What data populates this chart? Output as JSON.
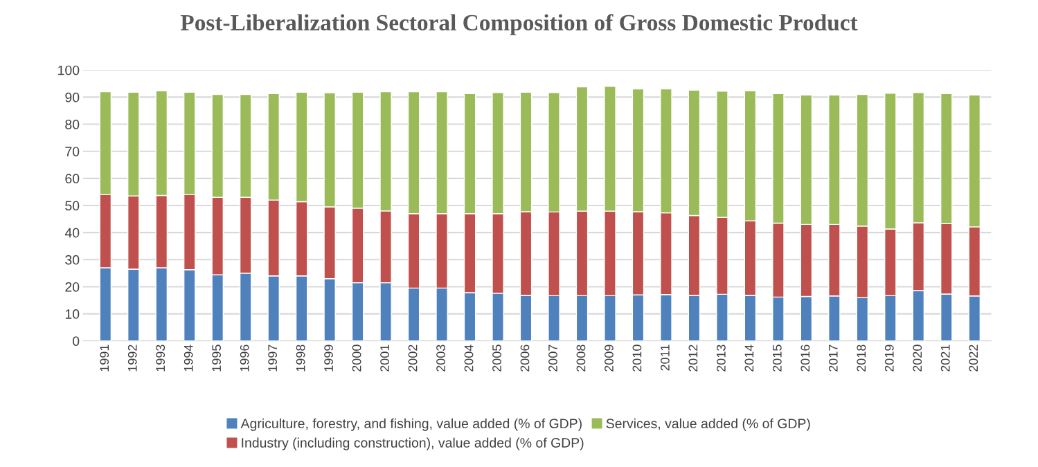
{
  "chart_data": {
    "type": "bar",
    "stacked": true,
    "title": "Post-Liberalization Sectoral Composition of Gross Domestic Product",
    "categories": [
      "1991",
      "1992",
      "1993",
      "1994",
      "1995",
      "1996",
      "1997",
      "1998",
      "1999",
      "2000",
      "2001",
      "2002",
      "2003",
      "2004",
      "2005",
      "2006",
      "2007",
      "2008",
      "2009",
      "2010",
      "2011",
      "2012",
      "2013",
      "2014",
      "2015",
      "2016",
      "2017",
      "2018",
      "2019",
      "2020",
      "2021",
      "2022"
    ],
    "series": [
      {
        "name": "Agriculture, forestry, and fishing, value added (% of GDP)",
        "color": "#4f81bd",
        "values": [
          27,
          26.5,
          27,
          26.3,
          24.4,
          25,
          24,
          24,
          23,
          21.5,
          21.5,
          19.5,
          19.5,
          17.8,
          17.6,
          16.8,
          16.7,
          16.7,
          16.7,
          17,
          17.1,
          16.8,
          17.2,
          16.8,
          16.2,
          16.4,
          16.6,
          16,
          16.7,
          18.6,
          17.3,
          16.6
        ]
      },
      {
        "name": "Industry (including construction), value added (% of GDP)",
        "color": "#c0504d",
        "values": [
          27,
          27,
          26.7,
          27.7,
          28.6,
          28,
          28,
          27.4,
          26.5,
          27.5,
          26.5,
          27.5,
          27.5,
          29.2,
          29.4,
          30.9,
          30.9,
          31.2,
          31.2,
          30.7,
          30.2,
          29.5,
          28.4,
          27.5,
          27.3,
          26.6,
          26.4,
          26.4,
          24.6,
          25,
          26,
          25.5
        ]
      },
      {
        "name": "Services, value added (% of GDP)",
        "color": "#9bbb59",
        "values": [
          38,
          38.3,
          38.6,
          37.8,
          38,
          38,
          39.3,
          40.4,
          42.1,
          42.8,
          44,
          45,
          45,
          44.3,
          44.7,
          44.1,
          44.1,
          45.9,
          46.1,
          45.3,
          45.7,
          46.3,
          46.6,
          48,
          47.8,
          47.8,
          47.8,
          48.6,
          50.1,
          48.1,
          48,
          48.7
        ]
      }
    ],
    "ylim": [
      0,
      100
    ],
    "yticks": [
      0,
      10,
      20,
      30,
      40,
      50,
      60,
      70,
      80,
      90,
      100
    ],
    "grid": "y",
    "legend": "bottom"
  }
}
